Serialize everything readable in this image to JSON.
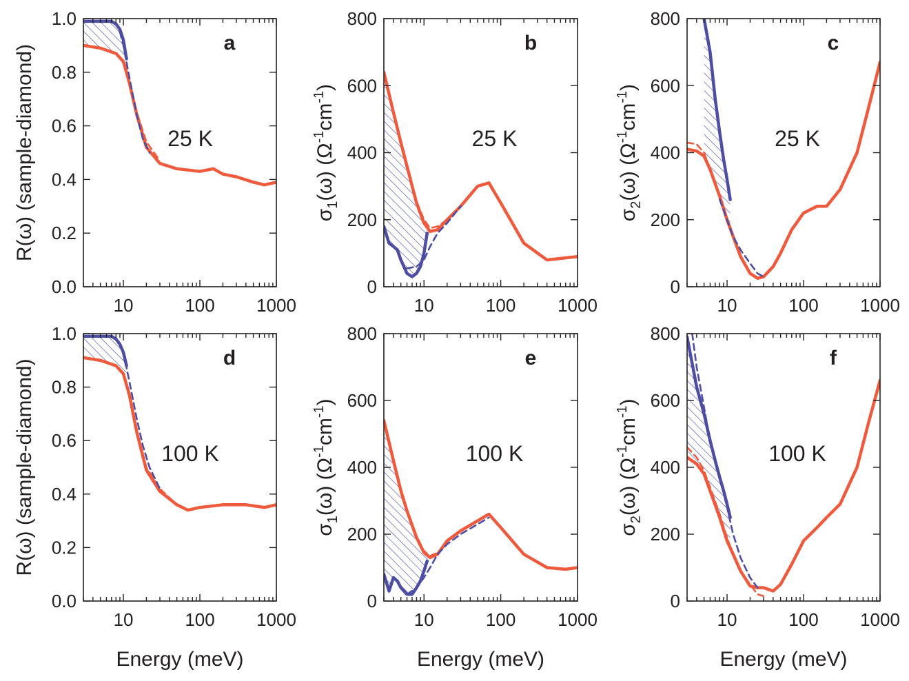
{
  "colors": {
    "normal": "#ef5a3c",
    "superconducting": "#4d4ea3",
    "axis": "#231f20"
  },
  "chart_data": [
    {
      "panel": "a",
      "temperature": "25 K",
      "type": "line",
      "xscale": "log",
      "xlim": [
        3,
        1000
      ],
      "ylim": [
        0,
        1
      ],
      "xticks": [
        "10",
        "100",
        "1000"
      ],
      "yticks": [
        "0.0",
        "0.2",
        "0.4",
        "0.6",
        "0.8",
        "1.0"
      ],
      "xlabel": "",
      "ylabel": "R(ω) (sample-diamond)",
      "series": [
        {
          "role": "normal",
          "style": "solid",
          "x": [
            3,
            5,
            8,
            10,
            12,
            15,
            20,
            30,
            50,
            100,
            150,
            200,
            300,
            500,
            700,
            1000
          ],
          "y": [
            0.9,
            0.89,
            0.87,
            0.84,
            0.76,
            0.64,
            0.52,
            0.46,
            0.44,
            0.43,
            0.44,
            0.42,
            0.41,
            0.39,
            0.38,
            0.39
          ]
        },
        {
          "role": "normal",
          "style": "dashed",
          "x": [
            5,
            8,
            10,
            12,
            15,
            20,
            30
          ],
          "y": [
            0.89,
            0.87,
            0.84,
            0.76,
            0.65,
            0.54,
            0.47
          ]
        },
        {
          "role": "superconducting",
          "style": "solid",
          "x": [
            3,
            5,
            7,
            8,
            9,
            10,
            11
          ],
          "y": [
            0.99,
            0.99,
            0.99,
            0.98,
            0.96,
            0.92,
            0.85
          ]
        },
        {
          "role": "superconducting",
          "style": "dashed",
          "x": [
            9,
            10,
            12,
            15,
            18,
            22
          ],
          "y": [
            0.95,
            0.9,
            0.78,
            0.64,
            0.55,
            0.5
          ]
        }
      ]
    },
    {
      "panel": "b",
      "temperature": "25 K",
      "type": "line",
      "xscale": "log",
      "xlim": [
        3,
        1000
      ],
      "ylim": [
        0,
        800
      ],
      "xticks": [
        "10",
        "100",
        "1000"
      ],
      "yticks": [
        "0",
        "200",
        "400",
        "600",
        "800"
      ],
      "xlabel": "",
      "ylabel": "σ1(ω) (Ω-1cm-1)",
      "series": [
        {
          "role": "normal",
          "style": "solid",
          "x": [
            3,
            4,
            5,
            6,
            8,
            10,
            12,
            15,
            20,
            30,
            50,
            70,
            100,
            200,
            400,
            1000
          ],
          "y": [
            640,
            520,
            430,
            360,
            250,
            190,
            165,
            170,
            200,
            240,
            300,
            310,
            250,
            130,
            80,
            90
          ]
        },
        {
          "role": "normal",
          "style": "dashed",
          "x": [
            5,
            8,
            10,
            12,
            15,
            20
          ],
          "y": [
            430,
            255,
            200,
            175,
            180,
            200
          ]
        },
        {
          "role": "superconducting",
          "style": "solid",
          "x": [
            3,
            3.5,
            4,
            4.5,
            5,
            6,
            7,
            8,
            9,
            10,
            11
          ],
          "y": [
            180,
            130,
            120,
            110,
            80,
            40,
            30,
            40,
            60,
            100,
            160
          ]
        },
        {
          "role": "superconducting",
          "style": "dashed",
          "x": [
            6,
            8,
            10,
            12,
            15,
            20,
            30
          ],
          "y": [
            55,
            60,
            80,
            120,
            160,
            190,
            240
          ]
        }
      ]
    },
    {
      "panel": "c",
      "temperature": "25 K",
      "type": "line",
      "xscale": "log",
      "xlim": [
        3,
        1000
      ],
      "ylim": [
        0,
        800
      ],
      "xticks": [
        "10",
        "100",
        "1000"
      ],
      "yticks": [
        "0",
        "200",
        "400",
        "600",
        "800"
      ],
      "xlabel": "",
      "ylabel": "σ2(ω) (Ω-1cm-1)",
      "series": [
        {
          "role": "normal",
          "style": "solid",
          "x": [
            3,
            4,
            5,
            6,
            8,
            10,
            12,
            15,
            20,
            25,
            30,
            40,
            50,
            70,
            100,
            150,
            200,
            300,
            500,
            700,
            1000
          ],
          "y": [
            410,
            405,
            390,
            350,
            270,
            200,
            150,
            90,
            40,
            25,
            30,
            60,
            100,
            170,
            220,
            240,
            240,
            290,
            400,
            530,
            670
          ]
        },
        {
          "role": "normal",
          "style": "dashed",
          "x": [
            3,
            4,
            5,
            6,
            8,
            10,
            12,
            15
          ],
          "y": [
            430,
            425,
            400,
            350,
            270,
            200,
            150,
            95
          ]
        },
        {
          "role": "superconducting",
          "style": "solid",
          "x": [
            5,
            6,
            7,
            8,
            9,
            10,
            11
          ],
          "y": [
            800,
            700,
            560,
            460,
            380,
            320,
            260
          ]
        },
        {
          "role": "superconducting",
          "style": "dashed",
          "x": [
            8,
            10,
            12,
            15,
            20,
            25,
            30
          ],
          "y": [
            260,
            200,
            150,
            110,
            70,
            40,
            30
          ]
        }
      ]
    },
    {
      "panel": "d",
      "temperature": "100 K",
      "type": "line",
      "xscale": "log",
      "xlim": [
        3,
        1000
      ],
      "ylim": [
        0,
        1
      ],
      "xticks": [
        "10",
        "100",
        "1000"
      ],
      "yticks": [
        "0.0",
        "0.2",
        "0.4",
        "0.6",
        "0.8",
        "1.0"
      ],
      "xlabel": "Energy (meV)",
      "ylabel": "R(ω) (sample-diamond)",
      "series": [
        {
          "role": "normal",
          "style": "solid",
          "x": [
            3,
            5,
            8,
            10,
            12,
            15,
            20,
            30,
            50,
            70,
            100,
            200,
            400,
            700,
            1000
          ],
          "y": [
            0.91,
            0.9,
            0.88,
            0.85,
            0.77,
            0.63,
            0.49,
            0.41,
            0.36,
            0.34,
            0.35,
            0.36,
            0.36,
            0.35,
            0.36
          ]
        },
        {
          "role": "normal",
          "style": "dashed",
          "x": [
            12,
            15,
            20,
            30,
            50,
            70
          ],
          "y": [
            0.78,
            0.64,
            0.5,
            0.42,
            0.36,
            0.34
          ]
        },
        {
          "role": "superconducting",
          "style": "solid",
          "x": [
            3,
            5,
            7,
            8,
            9,
            10,
            11
          ],
          "y": [
            0.99,
            0.99,
            0.99,
            0.98,
            0.96,
            0.93,
            0.88
          ]
        },
        {
          "role": "superconducting",
          "style": "dashed",
          "x": [
            10,
            12,
            15,
            18,
            22,
            30
          ],
          "y": [
            0.93,
            0.82,
            0.68,
            0.58,
            0.5,
            0.42
          ]
        }
      ]
    },
    {
      "panel": "e",
      "temperature": "100 K",
      "type": "line",
      "xscale": "log",
      "xlim": [
        3,
        1000
      ],
      "ylim": [
        0,
        800
      ],
      "xticks": [
        "10",
        "100",
        "1000"
      ],
      "yticks": [
        "0",
        "200",
        "400",
        "600",
        "800"
      ],
      "xlabel": "Energy (meV)",
      "ylabel": "σ1(ω) (Ω-1cm-1)",
      "series": [
        {
          "role": "normal",
          "style": "solid",
          "x": [
            3,
            4,
            5,
            6,
            8,
            10,
            12,
            15,
            20,
            30,
            50,
            70,
            100,
            200,
            400,
            700,
            1000
          ],
          "y": [
            540,
            420,
            330,
            270,
            190,
            145,
            130,
            140,
            180,
            210,
            240,
            260,
            220,
            140,
            100,
            95,
            100
          ]
        },
        {
          "role": "normal",
          "style": "dashed",
          "x": [
            6,
            8,
            10,
            12,
            15,
            20
          ],
          "y": [
            270,
            195,
            150,
            135,
            145,
            175
          ]
        },
        {
          "role": "superconducting",
          "style": "solid",
          "x": [
            3,
            3.5,
            4,
            4.5,
            5,
            6,
            7,
            8,
            9,
            10,
            11
          ],
          "y": [
            80,
            30,
            70,
            60,
            40,
            20,
            20,
            40,
            60,
            90,
            120
          ]
        },
        {
          "role": "superconducting",
          "style": "dashed",
          "x": [
            6,
            8,
            10,
            12,
            15,
            20,
            30,
            50,
            70
          ],
          "y": [
            20,
            40,
            70,
            100,
            140,
            170,
            200,
            230,
            250
          ]
        }
      ]
    },
    {
      "panel": "f",
      "temperature": "100 K",
      "type": "line",
      "xscale": "log",
      "xlim": [
        3,
        1000
      ],
      "ylim": [
        0,
        800
      ],
      "xticks": [
        "10",
        "100",
        "1000"
      ],
      "yticks": [
        "0",
        "200",
        "400",
        "600",
        "800"
      ],
      "xlabel": "Energy (meV)",
      "ylabel": "σ2(ω) (Ω-1cm-1)",
      "series": [
        {
          "role": "normal",
          "style": "solid",
          "x": [
            3,
            4,
            5,
            6,
            8,
            10,
            12,
            15,
            20,
            25,
            30,
            40,
            50,
            70,
            100,
            150,
            200,
            300,
            500,
            700,
            1000
          ],
          "y": [
            430,
            410,
            380,
            330,
            250,
            180,
            140,
            90,
            45,
            40,
            40,
            30,
            50,
            110,
            180,
            220,
            250,
            290,
            400,
            530,
            660
          ]
        },
        {
          "role": "normal",
          "style": "dashed",
          "x": [
            3,
            4,
            5,
            6,
            8,
            10,
            12,
            15,
            20,
            25,
            30
          ],
          "y": [
            460,
            430,
            390,
            340,
            260,
            190,
            140,
            90,
            50,
            20,
            15
          ]
        },
        {
          "role": "superconducting",
          "style": "solid",
          "x": [
            3,
            4,
            5,
            6,
            7,
            8,
            9,
            10,
            11
          ],
          "y": [
            790,
            640,
            560,
            480,
            420,
            370,
            330,
            290,
            250
          ]
        },
        {
          "role": "superconducting",
          "style": "dashed",
          "x": [
            3.5,
            4,
            5,
            6,
            8,
            10,
            12,
            15,
            20,
            25
          ],
          "y": [
            800,
            700,
            580,
            480,
            370,
            280,
            200,
            130,
            70,
            40
          ]
        }
      ]
    }
  ]
}
